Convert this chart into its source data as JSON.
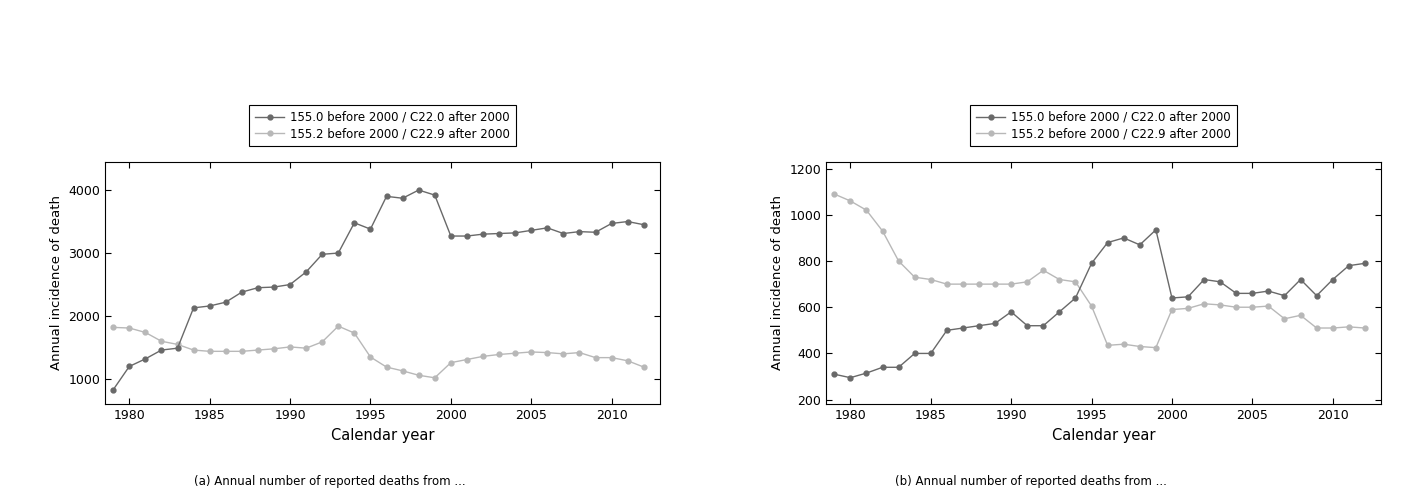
{
  "years": [
    1979,
    1980,
    1981,
    1982,
    1983,
    1984,
    1985,
    1986,
    1987,
    1988,
    1989,
    1990,
    1991,
    1992,
    1993,
    1994,
    1995,
    1996,
    1997,
    1998,
    1999,
    2000,
    2001,
    2002,
    2003,
    2004,
    2005,
    2006,
    2007,
    2008,
    2009,
    2010,
    2011,
    2012
  ],
  "left_series1": [
    830,
    1200,
    1320,
    1460,
    1490,
    2130,
    2160,
    2220,
    2380,
    2450,
    2460,
    2500,
    2700,
    2980,
    3000,
    3480,
    3380,
    3900,
    3870,
    4000,
    3920,
    3270,
    3270,
    3300,
    3310,
    3320,
    3360,
    3400,
    3310,
    3340,
    3330,
    3470,
    3500,
    3450
  ],
  "left_series2": [
    1820,
    1810,
    1740,
    1600,
    1550,
    1460,
    1440,
    1440,
    1440,
    1460,
    1480,
    1510,
    1490,
    1590,
    1840,
    1730,
    1350,
    1190,
    1130,
    1060,
    1020,
    1260,
    1310,
    1360,
    1390,
    1410,
    1430,
    1420,
    1400,
    1420,
    1340,
    1340,
    1290,
    1190
  ],
  "right_series1": [
    310,
    295,
    315,
    340,
    340,
    400,
    400,
    500,
    510,
    520,
    530,
    580,
    520,
    520,
    580,
    640,
    790,
    880,
    900,
    870,
    935,
    640,
    645,
    720,
    710,
    660,
    660,
    670,
    650,
    720,
    650,
    720,
    780,
    790
  ],
  "right_series2": [
    1090,
    1060,
    1020,
    930,
    800,
    730,
    720,
    700,
    700,
    700,
    700,
    700,
    710,
    760,
    720,
    710,
    605,
    435,
    440,
    430,
    425,
    590,
    595,
    615,
    610,
    600,
    600,
    605,
    550,
    565,
    510,
    510,
    515,
    510
  ],
  "color_dark": "#696969",
  "color_light": "#b8b8b8",
  "legend_label1": "155.0 before 2000 / C22.0 after 2000",
  "legend_label2": "155.2 before 2000 / C22.9 after 2000",
  "ylabel": "Annual incidence of death",
  "xlabel": "Calendar year",
  "left_ylim": [
    600,
    4450
  ],
  "right_ylim": [
    180,
    1230
  ],
  "left_yticks": [
    1000,
    2000,
    3000,
    4000
  ],
  "right_yticks": [
    200,
    400,
    600,
    800,
    1000,
    1200
  ],
  "xlim": [
    1978.5,
    2013
  ],
  "xticks": [
    1980,
    1985,
    1990,
    1995,
    2000,
    2005,
    2010
  ],
  "marker": "o",
  "markersize": 3.5,
  "linewidth": 1.0
}
